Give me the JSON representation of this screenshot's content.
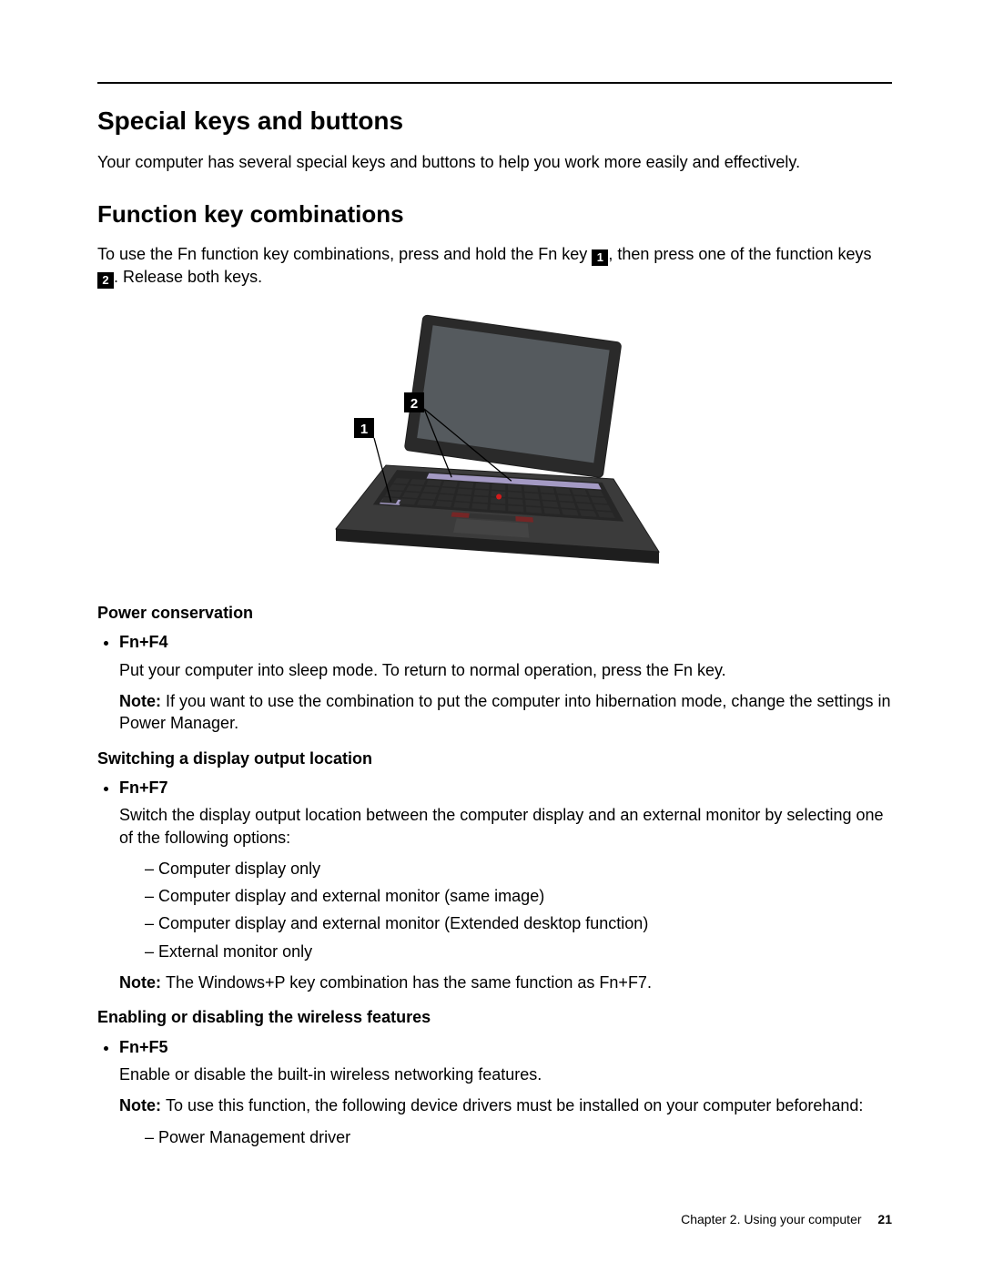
{
  "section_title": "Special keys and buttons",
  "section_intro": "Your computer has several special keys and buttons to help you work more easily and effectively.",
  "subsection_title": "Function key combinations",
  "fn_intro": {
    "pre": "To use the Fn function key combinations, press and hold the Fn key ",
    "mid": ", then press one of the function keys ",
    "post": ". Release both keys."
  },
  "callouts": {
    "one": "1",
    "two": "2"
  },
  "figure": {
    "label1": "1",
    "label2": "2",
    "colors": {
      "body": "#3b3b3b",
      "body_edge": "#1e1e1e",
      "screen_frame": "#2a2a2a",
      "screen": "#555a5e",
      "key_dark": "#2d2d2d",
      "key_hl": "#b3a7d6",
      "trackpoint": "#d11b1b",
      "touchpad": "#444444",
      "btn_red": "#b81a1a",
      "label_bg": "#000000",
      "label_fg": "#ffffff"
    }
  },
  "groups": [
    {
      "heading": "Power conservation",
      "items": [
        {
          "key": "Fn+F4",
          "body": "Put your computer into sleep mode. To return to normal operation, press the Fn key.",
          "note": "If you want to use the combination to put the computer into hibernation mode, change the settings in Power Manager."
        }
      ]
    },
    {
      "heading": "Switching a display output location",
      "items": [
        {
          "key": "Fn+F7",
          "body": "Switch the display output location between the computer display and an external monitor by selecting one of the following options:",
          "options": [
            "Computer display only",
            "Computer display and external monitor (same image)",
            "Computer display and external monitor (Extended desktop function)",
            "External monitor only"
          ],
          "note": "The Windows+P key combination has the same function as Fn+F7."
        }
      ]
    },
    {
      "heading": "Enabling or disabling the wireless features",
      "items": [
        {
          "key": "Fn+F5",
          "body": "Enable or disable the built-in wireless networking features.",
          "note": "To use this function, the following device drivers must be installed on your computer beforehand:",
          "options_after_note": [
            "Power Management driver"
          ]
        }
      ]
    }
  ],
  "note_label": "Note:",
  "footer": {
    "chapter": "Chapter 2.  Using your computer",
    "page": "21"
  }
}
